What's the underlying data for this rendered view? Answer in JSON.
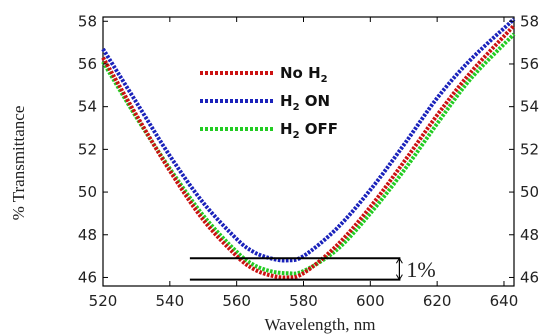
{
  "chart_data": {
    "type": "line",
    "title": "",
    "xlabel": "Wavelength, nm",
    "ylabel": "% Transmittance",
    "xlim": [
      520,
      643
    ],
    "ylim": [
      45.6,
      58.2
    ],
    "xticks": [
      "520",
      "540",
      "560",
      "580",
      "600",
      "620",
      "640"
    ],
    "yticks": [
      "46",
      "48",
      "50",
      "52",
      "54",
      "56",
      "58"
    ],
    "grid": false,
    "legend_position": "top-center",
    "series": [
      {
        "name": "No H2",
        "label_main": "No H",
        "label_sub": "2",
        "label_tail": "",
        "color": "#cc1111",
        "x": [
          520,
          530,
          540,
          550,
          560,
          565,
          570,
          575,
          580,
          590,
          600,
          610,
          620,
          630,
          643
        ],
        "y": [
          56.3,
          53.6,
          51.0,
          48.7,
          47.0,
          46.4,
          46.1,
          46.0,
          46.2,
          47.5,
          49.3,
          51.4,
          53.6,
          55.6,
          57.8
        ]
      },
      {
        "name": "H2 ON",
        "label_main": "H",
        "label_sub": "2",
        "label_tail": " ON",
        "color": "#1a22bb",
        "x": [
          520,
          530,
          540,
          550,
          560,
          565,
          570,
          575,
          580,
          590,
          600,
          610,
          620,
          630,
          643
        ],
        "y": [
          56.7,
          54.2,
          51.7,
          49.5,
          47.8,
          47.2,
          46.9,
          46.8,
          47.0,
          48.3,
          50.1,
          52.2,
          54.4,
          56.2,
          58.1
        ]
      },
      {
        "name": "H2 OFF",
        "label_main": "H",
        "label_sub": "2",
        "label_tail": " OFF",
        "color": "#22cc22",
        "x": [
          520,
          530,
          540,
          550,
          560,
          565,
          570,
          575,
          580,
          590,
          600,
          610,
          620,
          630,
          643
        ],
        "y": [
          56.1,
          53.5,
          51.1,
          48.9,
          47.2,
          46.6,
          46.3,
          46.2,
          46.3,
          47.3,
          49.0,
          51.0,
          53.2,
          55.3,
          57.4
        ]
      }
    ],
    "annotation": {
      "text": "1%",
      "upper_y": 46.9,
      "lower_y": 45.9,
      "x_start": 546,
      "x_end": 609
    }
  }
}
